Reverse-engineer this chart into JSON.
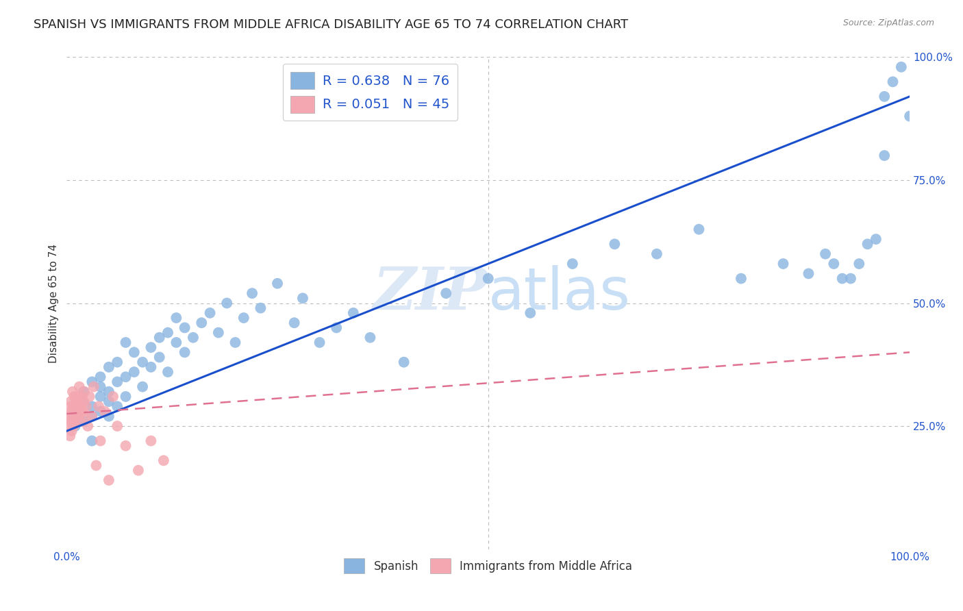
{
  "title": "SPANISH VS IMMIGRANTS FROM MIDDLE AFRICA DISABILITY AGE 65 TO 74 CORRELATION CHART",
  "source": "Source: ZipAtlas.com",
  "ylabel": "Disability Age 65 to 74",
  "xlim": [
    0,
    1.0
  ],
  "ylim": [
    0,
    1.0
  ],
  "ytick_positions": [
    0.25,
    0.5,
    0.75,
    1.0
  ],
  "legend_label1": "Spanish",
  "legend_label2": "Immigrants from Middle Africa",
  "r1": 0.638,
  "n1": 76,
  "r2": 0.051,
  "n2": 45,
  "blue_color": "#8ab4e0",
  "pink_color": "#f4a7b0",
  "blue_line_color": "#1a4fcc",
  "pink_line_color": "#e07090",
  "watermark_color": "#dce8f5",
  "title_fontsize": 13,
  "axis_label_fontsize": 11,
  "tick_fontsize": 11,
  "spanish_x": [
    0.01,
    0.01,
    0.02,
    0.02,
    0.02,
    0.03,
    0.03,
    0.03,
    0.03,
    0.04,
    0.04,
    0.04,
    0.04,
    0.05,
    0.05,
    0.05,
    0.05,
    0.06,
    0.06,
    0.06,
    0.07,
    0.07,
    0.07,
    0.08,
    0.08,
    0.09,
    0.09,
    0.1,
    0.1,
    0.11,
    0.11,
    0.12,
    0.12,
    0.13,
    0.13,
    0.14,
    0.14,
    0.15,
    0.16,
    0.17,
    0.18,
    0.19,
    0.2,
    0.21,
    0.22,
    0.23,
    0.25,
    0.27,
    0.28,
    0.3,
    0.32,
    0.34,
    0.36,
    0.4,
    0.45,
    0.5,
    0.55,
    0.6,
    0.65,
    0.7,
    0.75,
    0.8,
    0.85,
    0.88,
    0.9,
    0.91,
    0.92,
    0.93,
    0.94,
    0.95,
    0.96,
    0.97,
    0.97,
    0.98,
    0.99,
    1.0
  ],
  "spanish_y": [
    0.28,
    0.25,
    0.3,
    0.26,
    0.32,
    0.29,
    0.27,
    0.34,
    0.22,
    0.31,
    0.28,
    0.35,
    0.33,
    0.3,
    0.27,
    0.37,
    0.32,
    0.34,
    0.29,
    0.38,
    0.35,
    0.31,
    0.42,
    0.36,
    0.4,
    0.38,
    0.33,
    0.41,
    0.37,
    0.43,
    0.39,
    0.44,
    0.36,
    0.42,
    0.47,
    0.45,
    0.4,
    0.43,
    0.46,
    0.48,
    0.44,
    0.5,
    0.42,
    0.47,
    0.52,
    0.49,
    0.54,
    0.46,
    0.51,
    0.42,
    0.45,
    0.48,
    0.43,
    0.38,
    0.52,
    0.55,
    0.48,
    0.58,
    0.62,
    0.6,
    0.65,
    0.55,
    0.58,
    0.56,
    0.6,
    0.58,
    0.55,
    0.55,
    0.58,
    0.62,
    0.63,
    0.92,
    0.8,
    0.95,
    0.98,
    0.88
  ],
  "pink_x": [
    0.002,
    0.003,
    0.004,
    0.004,
    0.005,
    0.005,
    0.006,
    0.006,
    0.007,
    0.007,
    0.008,
    0.008,
    0.009,
    0.009,
    0.01,
    0.01,
    0.011,
    0.012,
    0.013,
    0.014,
    0.015,
    0.015,
    0.016,
    0.017,
    0.018,
    0.019,
    0.02,
    0.021,
    0.022,
    0.023,
    0.025,
    0.027,
    0.03,
    0.032,
    0.035,
    0.038,
    0.04,
    0.045,
    0.05,
    0.055,
    0.06,
    0.07,
    0.085,
    0.1,
    0.115
  ],
  "pink_y": [
    0.27,
    0.25,
    0.29,
    0.23,
    0.26,
    0.3,
    0.28,
    0.24,
    0.27,
    0.32,
    0.25,
    0.29,
    0.31,
    0.27,
    0.28,
    0.26,
    0.3,
    0.29,
    0.27,
    0.31,
    0.28,
    0.33,
    0.26,
    0.29,
    0.31,
    0.28,
    0.3,
    0.32,
    0.27,
    0.29,
    0.25,
    0.31,
    0.27,
    0.33,
    0.17,
    0.29,
    0.22,
    0.28,
    0.14,
    0.31,
    0.25,
    0.21,
    0.16,
    0.22,
    0.18
  ],
  "blue_line_x0": 0.0,
  "blue_line_y0": 0.24,
  "blue_line_x1": 1.0,
  "blue_line_y1": 0.92,
  "pink_line_x0": 0.0,
  "pink_line_y0": 0.275,
  "pink_line_x1": 1.0,
  "pink_line_y1": 0.4
}
